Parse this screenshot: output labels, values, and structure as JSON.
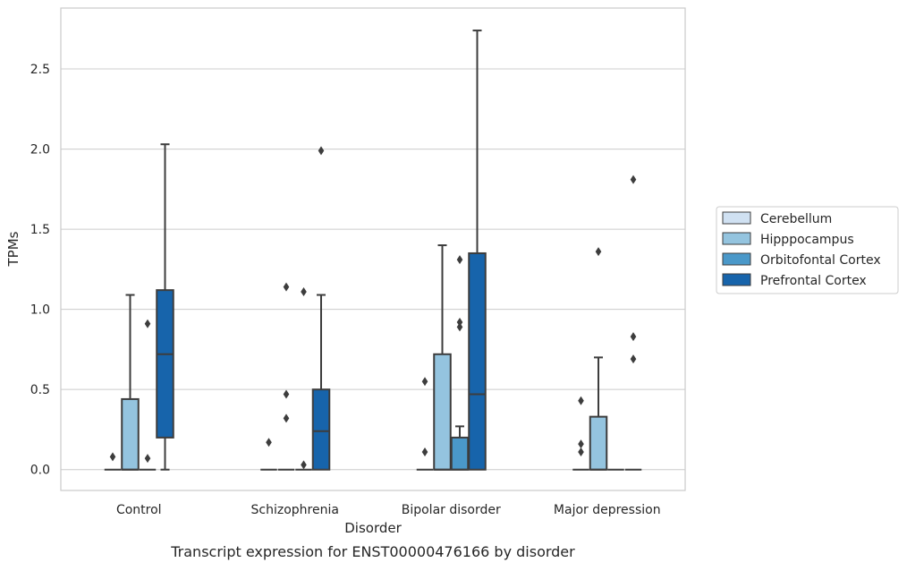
{
  "chart_data": {
    "type": "box",
    "xlabel": "Disorder",
    "ylabel": "TPMs",
    "caption": "Transcript expression for ENST00000476166 by disorder",
    "ylim": [
      -0.13,
      2.88
    ],
    "yticks": [
      0.0,
      0.5,
      1.0,
      1.5,
      2.0,
      2.5
    ],
    "ytick_labels": [
      "0.0",
      "0.5",
      "1.0",
      "1.5",
      "2.0",
      "2.5"
    ],
    "grid": "horizontal",
    "legend_position": "right",
    "categories": [
      "Control",
      "Schizophrenia",
      "Bipolar disorder",
      "Major depression"
    ],
    "series": [
      {
        "name": "Cerebellum",
        "color": "#d0e1f2",
        "boxes": [
          {
            "category": "Control",
            "q1": 0.0,
            "median": 0.0,
            "q3": 0.0,
            "whisker_low": 0.0,
            "whisker_high": 0.0,
            "outliers": [
              0.08
            ]
          },
          {
            "category": "Schizophrenia",
            "q1": 0.0,
            "median": 0.0,
            "q3": 0.0,
            "whisker_low": 0.0,
            "whisker_high": 0.0,
            "outliers": [
              0.17
            ]
          },
          {
            "category": "Bipolar disorder",
            "q1": 0.0,
            "median": 0.0,
            "q3": 0.0,
            "whisker_low": 0.0,
            "whisker_high": 0.0,
            "outliers": [
              0.11,
              0.55
            ]
          },
          {
            "category": "Major depression",
            "q1": 0.0,
            "median": 0.0,
            "q3": 0.0,
            "whisker_low": 0.0,
            "whisker_high": 0.0,
            "outliers": [
              0.11,
              0.16,
              0.43
            ]
          }
        ]
      },
      {
        "name": "Hipppocampus",
        "color": "#94c4df",
        "boxes": [
          {
            "category": "Control",
            "q1": 0.0,
            "median": 0.0,
            "q3": 0.44,
            "whisker_low": 0.0,
            "whisker_high": 1.09,
            "outliers": []
          },
          {
            "category": "Schizophrenia",
            "q1": 0.0,
            "median": 0.0,
            "q3": 0.0,
            "whisker_low": 0.0,
            "whisker_high": 0.0,
            "outliers": [
              0.32,
              0.47,
              1.14
            ]
          },
          {
            "category": "Bipolar disorder",
            "q1": 0.0,
            "median": 0.0,
            "q3": 0.72,
            "whisker_low": 0.0,
            "whisker_high": 1.4,
            "outliers": []
          },
          {
            "category": "Major depression",
            "q1": 0.0,
            "median": 0.0,
            "q3": 0.33,
            "whisker_low": 0.0,
            "whisker_high": 0.7,
            "outliers": [
              1.36
            ]
          }
        ]
      },
      {
        "name": "Orbitofontal Cortex",
        "color": "#4a98c9",
        "boxes": [
          {
            "category": "Control",
            "q1": 0.0,
            "median": 0.0,
            "q3": 0.0,
            "whisker_low": 0.0,
            "whisker_high": 0.0,
            "outliers": [
              0.07,
              0.91
            ]
          },
          {
            "category": "Schizophrenia",
            "q1": 0.0,
            "median": 0.0,
            "q3": 0.0,
            "whisker_low": 0.0,
            "whisker_high": 0.0,
            "outliers": [
              0.03,
              1.11
            ]
          },
          {
            "category": "Bipolar disorder",
            "q1": 0.0,
            "median": 0.0,
            "q3": 0.2,
            "whisker_low": 0.0,
            "whisker_high": 0.27,
            "outliers": [
              0.89,
              0.92,
              1.31
            ]
          },
          {
            "category": "Major depression",
            "q1": 0.0,
            "median": 0.0,
            "q3": 0.0,
            "whisker_low": 0.0,
            "whisker_high": 0.0,
            "outliers": []
          }
        ]
      },
      {
        "name": "Prefrontal Cortex",
        "color": "#1764ab",
        "boxes": [
          {
            "category": "Control",
            "q1": 0.2,
            "median": 0.72,
            "q3": 1.12,
            "whisker_low": 0.0,
            "whisker_high": 2.03,
            "outliers": []
          },
          {
            "category": "Schizophrenia",
            "q1": 0.0,
            "median": 0.24,
            "q3": 0.5,
            "whisker_low": 0.0,
            "whisker_high": 1.09,
            "outliers": [
              1.99
            ]
          },
          {
            "category": "Bipolar disorder",
            "q1": 0.0,
            "median": 0.47,
            "q3": 1.35,
            "whisker_low": 0.0,
            "whisker_high": 2.74,
            "outliers": []
          },
          {
            "category": "Major depression",
            "q1": 0.0,
            "median": 0.0,
            "q3": 0.0,
            "whisker_low": 0.0,
            "whisker_high": 0.0,
            "outliers": [
              0.69,
              0.83,
              1.81
            ]
          }
        ]
      }
    ]
  }
}
